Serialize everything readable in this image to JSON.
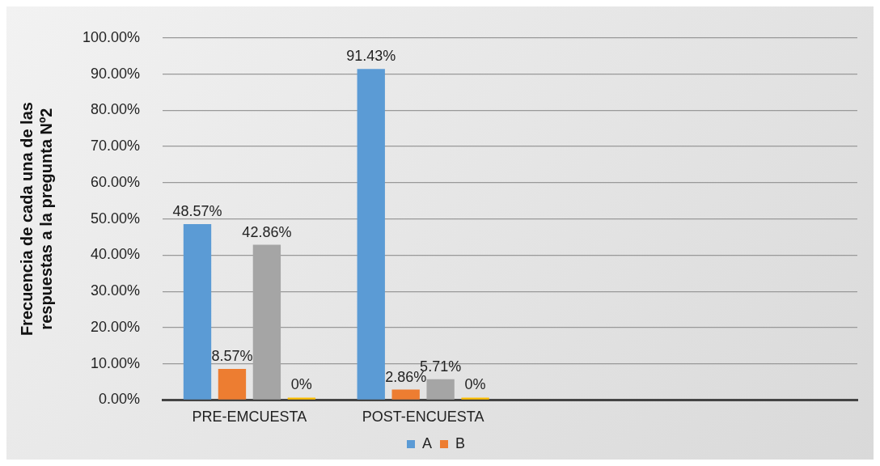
{
  "chart_data": {
    "type": "bar",
    "ylabel": "Frecuencia de cada una de las respuestas a la pregunta Nº2",
    "categories": [
      "PRE-EMCUESTA",
      "POST-ENCUESTA",
      null,
      null
    ],
    "series": [
      {
        "name": "A",
        "color": "#5b9bd5",
        "values": [
          48.57,
          91.43,
          null,
          null
        ],
        "value_labels": [
          "48.57%",
          "91.43%",
          null,
          null
        ]
      },
      {
        "name": "B",
        "color": "#ed7d31",
        "values": [
          8.57,
          2.86,
          null,
          null
        ],
        "value_labels": [
          "8.57%",
          "2.86%",
          null,
          null
        ]
      },
      {
        "color": "#a5a5a5",
        "values": [
          42.86,
          5.71,
          null,
          null
        ],
        "value_labels": [
          "42.86%",
          "5.71%",
          null,
          null
        ]
      },
      {
        "color": "#ffc000",
        "values": [
          0,
          0,
          null,
          null
        ],
        "value_labels": [
          "0%",
          "0%",
          null,
          null
        ]
      }
    ],
    "ylim": [
      0,
      100
    ],
    "yticks": [
      {
        "value": 0,
        "label": "0.00%"
      },
      {
        "value": 10,
        "label": "10.00%"
      },
      {
        "value": 20,
        "label": "20.00%"
      },
      {
        "value": 30,
        "label": "30.00%"
      },
      {
        "value": 40,
        "label": "40.00%"
      },
      {
        "value": 50,
        "label": "50.00%"
      },
      {
        "value": 60,
        "label": "60.00%"
      },
      {
        "value": 70,
        "label": "70.00%"
      },
      {
        "value": 80,
        "label": "80.00%"
      },
      {
        "value": 90,
        "label": "90.00%"
      },
      {
        "value": 100,
        "label": "100.00%"
      }
    ],
    "grid": "y",
    "legend": "bottom"
  }
}
